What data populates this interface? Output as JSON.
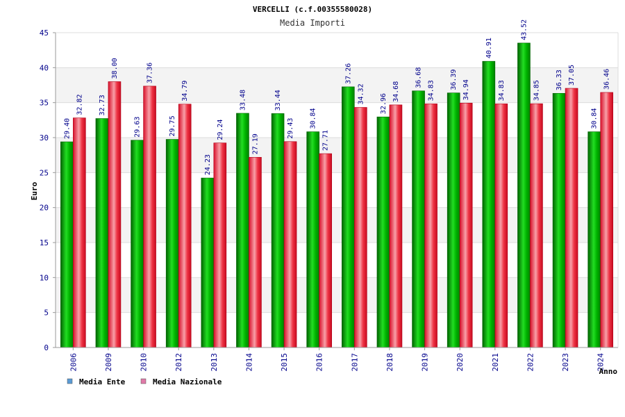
{
  "chart_data": {
    "type": "bar",
    "title": "VERCELLI (c.f.00355580028)",
    "subtitle": "Media Importi",
    "ylabel": "Euro",
    "xlabel": "Anno",
    "ylim": [
      0,
      45
    ],
    "yticks": [
      0,
      5,
      10,
      15,
      20,
      25,
      30,
      35,
      40,
      45
    ],
    "categories": [
      "2006",
      "2009",
      "2010",
      "2012",
      "2013",
      "2014",
      "2015",
      "2016",
      "2017",
      "2018",
      "2019",
      "2020",
      "2021",
      "2022",
      "2023",
      "2024"
    ],
    "series": [
      {
        "name": "Media Ente",
        "color": "#00b400",
        "legend_color": "#5b9bd5",
        "values": [
          29.4,
          32.73,
          29.63,
          29.75,
          24.23,
          33.48,
          33.44,
          30.84,
          37.26,
          32.96,
          36.68,
          36.39,
          40.91,
          43.52,
          36.33,
          30.84
        ],
        "labels": [
          "29.40",
          "32.73",
          "29.63",
          "29.75",
          "24.23",
          "33.48",
          "33.44",
          "30.84",
          "37.26",
          "32.96",
          "36.68",
          "36.39",
          "40.91",
          "43.52",
          "36.33",
          "30.84"
        ]
      },
      {
        "name": "Media Nazionale",
        "color": "#e8293a",
        "legend_color": "#e07aa8",
        "values": [
          32.82,
          38.0,
          37.36,
          34.79,
          29.24,
          27.19,
          29.43,
          27.71,
          34.32,
          34.68,
          34.83,
          34.94,
          34.83,
          34.85,
          37.05,
          36.46
        ],
        "labels": [
          "32.82",
          "38.00",
          "37.36",
          "34.79",
          "29.24",
          "27.19",
          "29.43",
          "27.71",
          "34.32",
          "34.68",
          "34.83",
          "34.94",
          "34.83",
          "34.85",
          "37.05",
          "36.46"
        ]
      }
    ],
    "grid": true,
    "legend_position": "bottom-left"
  }
}
